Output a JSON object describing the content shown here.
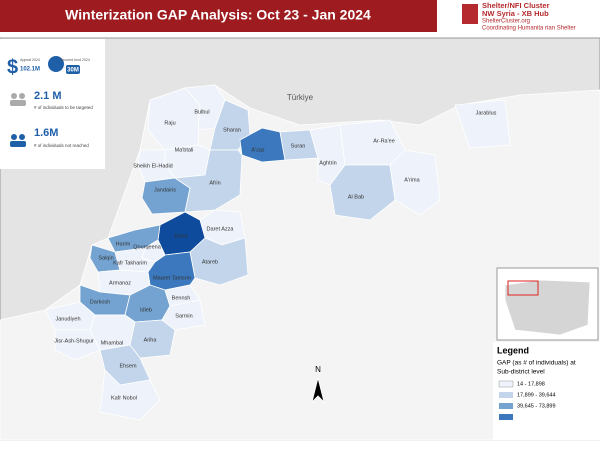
{
  "header": {
    "title": "Winterization GAP Analysis: Oct 23 - Jan 2024",
    "logo": [
      "Shelter/NFI Cluster",
      "NW Syria - XB Hub",
      "ShelterCluster.org",
      "Coordinating Humanita rian Shelter"
    ]
  },
  "stats": [
    {
      "label": "Appeal 2024",
      "value": "102.1M"
    },
    {
      "label": "Secured fund 2024",
      "value": "30M"
    }
  ],
  "indicators": [
    {
      "value": "2.1 M",
      "label": "# of individuals to be targeted"
    },
    {
      "value": "1.6M",
      "label": "# of individuals not reached"
    }
  ],
  "map": {
    "country": "Türkiye",
    "places": [
      "Raju",
      "Bulbul",
      "Sharan",
      "A'zaz",
      "Suran",
      "Ma'btali",
      "Sheikh El-Hadid",
      "Jandairis",
      "Afrin",
      "Aghtrin",
      "Ar-Ra'ee",
      "Al Bab",
      "A'rima",
      "Jarablus",
      "Daret Azza",
      "Dana",
      "Atareb",
      "Harim",
      "Qourqeena",
      "Salqin",
      "Kafr Takharim",
      "Maaret Tamsrin",
      "Armanaz",
      "Darkosh",
      "Idleb",
      "Bennsh",
      "Sarmin",
      "Janudiyeh",
      "Jisr-Ash-Shugur",
      "Mhambal",
      "Ariha",
      "Ehsem",
      "Kafr Nobol"
    ]
  },
  "legend": {
    "title": "Legend",
    "subtitle": [
      "GAP (as # of individuals) at",
      "Sub-district level"
    ],
    "classes": [
      "14 - 17,898",
      "17,899 - 39,644",
      "39,645 - 73,899"
    ]
  },
  "north": "N"
}
